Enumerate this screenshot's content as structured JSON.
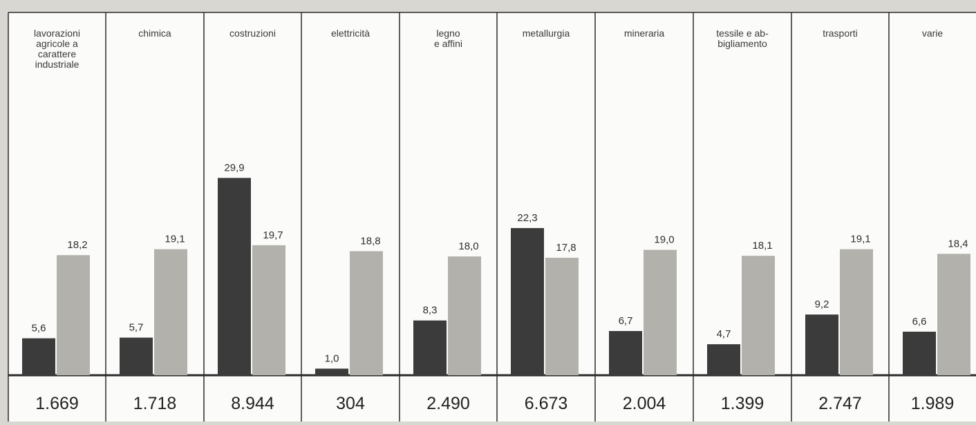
{
  "chart_data": {
    "type": "bar",
    "categories": [
      "lavorazioni agricole a carattere industriale",
      "chimica",
      "costruzioni",
      "elettricità",
      "legno e affini",
      "metallurgia",
      "mineraria",
      "tessile e abbigliamento",
      "trasporti",
      "varie"
    ],
    "category_label_lines": [
      [
        "lavorazioni",
        "agricole a",
        "carattere",
        "industriale"
      ],
      [
        "chimica"
      ],
      [
        "costruzioni"
      ],
      [
        "elettricità"
      ],
      [
        "legno",
        "e affini"
      ],
      [
        "metallurgia"
      ],
      [
        "mineraria"
      ],
      [
        "tessile e ab-",
        "bigliamento"
      ],
      [
        "trasporti"
      ],
      [
        "varie"
      ]
    ],
    "series": [
      {
        "values": [
          5.6,
          5.7,
          29.9,
          1.0,
          8.3,
          22.3,
          6.7,
          4.7,
          9.2,
          6.6
        ],
        "value_labels": [
          "5,6",
          "5,7",
          "29,9",
          "1,0",
          "8,3",
          "22,3",
          "6,7",
          "4,7",
          "9,2",
          "6,6"
        ]
      },
      {
        "values": [
          18.2,
          19.1,
          19.7,
          18.8,
          18.0,
          17.8,
          19.0,
          18.1,
          19.1,
          18.4
        ],
        "value_labels": [
          "18,2",
          "19,1",
          "19,7",
          "18,8",
          "18,0",
          "17,8",
          "19,0",
          "18,1",
          "19,1",
          "18,4"
        ]
      }
    ],
    "bottom_totals": [
      "1.669",
      "1.718",
      "8.944",
      "304",
      "2.490",
      "6.673",
      "2.004",
      "1.399",
      "2.747",
      "1.989"
    ],
    "ylim": [
      0,
      32
    ],
    "grid": false,
    "colors": {
      "series_dark": "#3b3b3b",
      "series_light": "#b3b1ac",
      "cell_bg": "#fbfbf9",
      "background": "#d9d7d2",
      "border": "#2b2b2b"
    }
  }
}
